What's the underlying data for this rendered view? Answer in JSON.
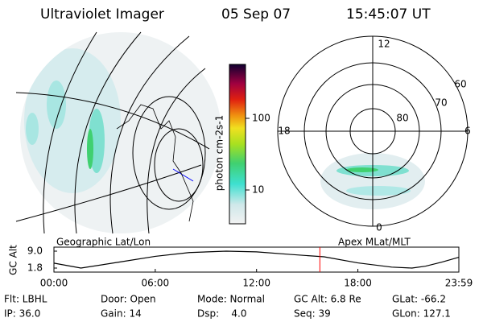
{
  "header": {
    "instrument": "Ultraviolet Imager",
    "date": "05 Sep 07",
    "time": "15:45:07 UT"
  },
  "colorbar": {
    "label": "photon cm-2s-1",
    "ticks": [
      "100",
      "10"
    ]
  },
  "polar": {
    "mlt_labels": [
      "12",
      "18",
      "6",
      "0"
    ],
    "lat_labels": [
      "60",
      "70",
      "80"
    ]
  },
  "captions": {
    "left": "Geographic Lat/Lon",
    "right": "Apex MLat/MLT"
  },
  "altitude": {
    "ylabel": "GC Alt",
    "x": [
      0,
      1.6,
      4,
      6,
      8,
      10.2,
      12,
      14,
      16,
      18,
      20,
      21.2,
      22,
      23,
      23.98
    ],
    "values": [
      3.9,
      1.8,
      4.5,
      6.8,
      8.4,
      9.0,
      8.7,
      7.6,
      6.6,
      4.0,
      2.2,
      1.8,
      2.6,
      4.4,
      6.4
    ],
    "current_hour": 15.75,
    "xlim": [
      0,
      23.98
    ],
    "ylim": [
      1.8,
      9.0
    ],
    "yticks": [
      {
        "value": 9.0,
        "label": "9.0"
      },
      {
        "value": 1.8,
        "label": "1.8"
      }
    ],
    "xticks": [
      {
        "value": 0,
        "label": "00:00"
      },
      {
        "value": 6,
        "label": "06:00"
      },
      {
        "value": 12,
        "label": "12:00"
      },
      {
        "value": 18,
        "label": "18:00"
      },
      {
        "value": 23.98,
        "label": "23:59"
      }
    ]
  },
  "info": {
    "rows": [
      [
        "Flt: LBHL",
        "Door: Open",
        "Mode: Normal",
        "GC Alt: 6.8 Re",
        "GLat: -66.2"
      ],
      [
        "IP: 36.0",
        "Gain: 14",
        "Dsp:    4.0",
        "Seq: 39",
        "GLon: 127.1"
      ]
    ]
  }
}
